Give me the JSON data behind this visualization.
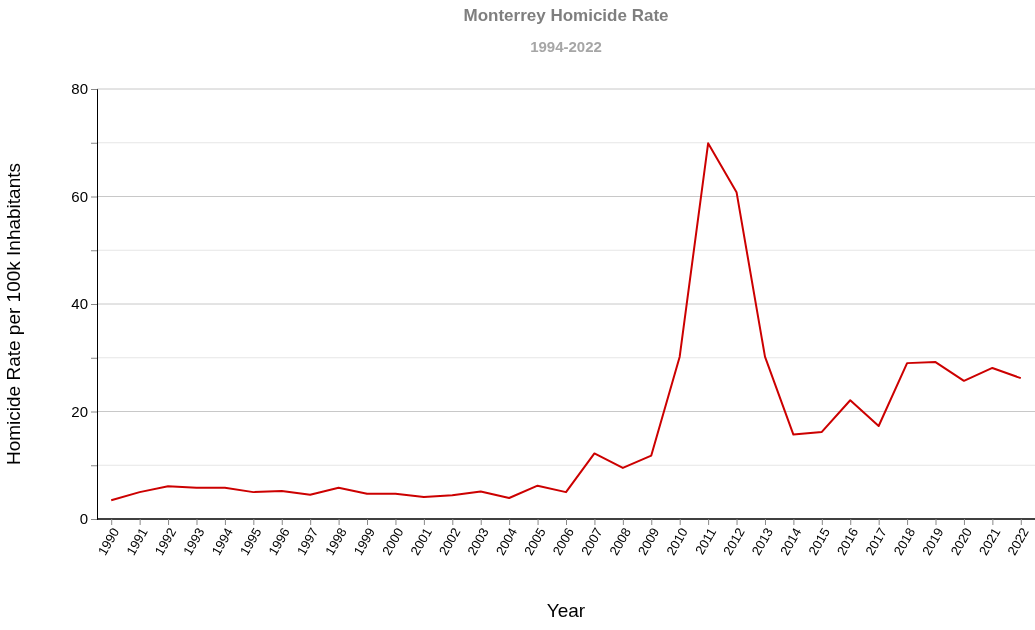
{
  "chart_data": {
    "type": "line",
    "title": "Monterrey Homicide Rate",
    "subtitle": "1994-2022",
    "xlabel": "Year",
    "ylabel": "Homicide Rate per 100k Inhabitants",
    "categories": [
      "1990",
      "1991",
      "1992",
      "1993",
      "1994",
      "1995",
      "1996",
      "1997",
      "1998",
      "1999",
      "2000",
      "2001",
      "2002",
      "2003",
      "2004",
      "2005",
      "2006",
      "2007",
      "2008",
      "2009",
      "2010",
      "2011",
      "2012",
      "2013",
      "2014",
      "2015",
      "2016",
      "2017",
      "2018",
      "2019",
      "2020",
      "2021",
      "2022"
    ],
    "series": [
      {
        "color": "#cc0000",
        "values": [
          3.5,
          5.0,
          6.1,
          5.8,
          5.8,
          5.0,
          5.2,
          4.5,
          5.8,
          4.7,
          4.7,
          4.1,
          4.4,
          5.1,
          3.9,
          6.2,
          5.0,
          12.2,
          9.5,
          11.8,
          30.2,
          69.9,
          60.8,
          30.2,
          15.7,
          16.2,
          22.1,
          17.3,
          29.0,
          29.2,
          25.7,
          28.1,
          26.2
        ]
      }
    ],
    "ylim": [
      0,
      80
    ],
    "yticks": [
      0,
      {
        "value": 10,
        "label": null
      },
      20,
      {
        "value": 30,
        "label": null
      },
      40,
      {
        "value": 50,
        "label": null
      },
      60,
      {
        "value": 70,
        "label": null
      },
      80
    ],
    "grid": "y",
    "marker": "none",
    "line_style": "solid"
  }
}
